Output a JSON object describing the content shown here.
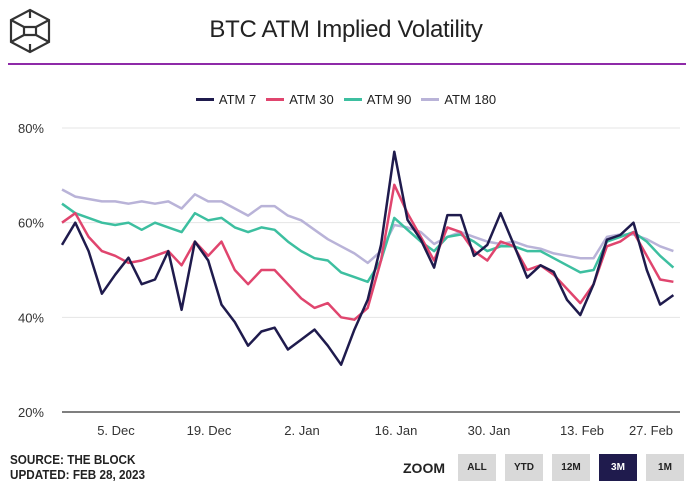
{
  "header": {
    "title": "BTC ATM Implied Volatility",
    "logo": "The Block cube logo"
  },
  "footer": {
    "source": "SOURCE: THE BLOCK",
    "updated": "UPDATED: FEB 28, 2023"
  },
  "zoom": {
    "label": "ZOOM",
    "buttons": [
      "ALL",
      "YTD",
      "12M",
      "3M",
      "1M"
    ],
    "active": "3M"
  },
  "chart_data": {
    "type": "line",
    "title": "BTC ATM Implied Volatility",
    "ylim": [
      20,
      80
    ],
    "yticks": [
      "20%",
      "40%",
      "60%",
      "80%"
    ],
    "xticks": [
      "5. Dec",
      "19. Dec",
      "2. Jan",
      "16. Jan",
      "30. Jan",
      "13. Feb",
      "27. Feb"
    ],
    "xrange": [
      "2022-11-27",
      "2023-02-28"
    ],
    "grid": true,
    "legend": "top",
    "x": [
      "2022-11-27",
      "2022-11-29",
      "2022-12-01",
      "2022-12-03",
      "2022-12-05",
      "2022-12-07",
      "2022-12-09",
      "2022-12-11",
      "2022-12-13",
      "2022-12-15",
      "2022-12-17",
      "2022-12-19",
      "2022-12-21",
      "2022-12-23",
      "2022-12-25",
      "2022-12-27",
      "2022-12-29",
      "2022-12-31",
      "2023-01-02",
      "2023-01-04",
      "2023-01-06",
      "2023-01-08",
      "2023-01-10",
      "2023-01-12",
      "2023-01-14",
      "2023-01-16",
      "2023-01-18",
      "2023-01-20",
      "2023-01-22",
      "2023-01-24",
      "2023-01-26",
      "2023-01-28",
      "2023-01-30",
      "2023-02-01",
      "2023-02-03",
      "2023-02-05",
      "2023-02-07",
      "2023-02-09",
      "2023-02-11",
      "2023-02-13",
      "2023-02-15",
      "2023-02-17",
      "2023-02-19",
      "2023-02-21",
      "2023-02-23",
      "2023-02-25",
      "2023-02-27"
    ],
    "series": [
      {
        "name": "ATM 7",
        "color": "#1f1b4d",
        "values": [
          55.3,
          60,
          54,
          45,
          49,
          52.6,
          47,
          48,
          54,
          41.6,
          56,
          52,
          42.7,
          39,
          34,
          37,
          37.8,
          33.2,
          35.3,
          37.4,
          34,
          30,
          37.4,
          43.7,
          55.3,
          75,
          60.6,
          56.4,
          50.5,
          61.6,
          61.6,
          53,
          55.3,
          62,
          55.3,
          48.4,
          51,
          49.6,
          43.7,
          40.5,
          47,
          56.4,
          57.4,
          60,
          50,
          42.7,
          44.7
        ]
      },
      {
        "name": "ATM 30",
        "color": "#e0456e",
        "values": [
          60,
          62,
          57,
          54,
          53,
          51.5,
          52,
          53,
          54,
          51,
          56,
          53,
          56,
          50,
          47,
          50,
          50,
          47,
          44,
          42,
          43,
          40,
          39.5,
          42,
          52,
          68,
          62,
          57,
          52,
          59,
          58,
          54,
          52,
          56,
          55,
          50,
          51,
          49,
          46,
          43,
          47,
          55,
          56,
          58,
          53,
          48,
          47.5
        ]
      },
      {
        "name": "ATM 90",
        "color": "#3dbfa0",
        "values": [
          64,
          62,
          61,
          60,
          59.5,
          60,
          58.5,
          60,
          59,
          58,
          62,
          60.5,
          61,
          59,
          58,
          59,
          58.5,
          56,
          54,
          52.5,
          52,
          49.5,
          48.5,
          47.5,
          52,
          61,
          58.5,
          56,
          54,
          57,
          57.5,
          56,
          54,
          55,
          55,
          54,
          54,
          52.5,
          51,
          49.5,
          50,
          56,
          57,
          58,
          56,
          53,
          50.5
        ]
      },
      {
        "name": "ATM 180",
        "color": "#b9b3d8",
        "values": [
          67,
          65.5,
          65,
          64.5,
          64.5,
          64,
          64.5,
          64,
          64.5,
          63,
          66,
          64.5,
          64.5,
          63,
          61.5,
          63.5,
          63.5,
          61.5,
          60.5,
          58.5,
          56.5,
          55,
          53.5,
          51.5,
          54,
          59.5,
          59,
          58,
          55.5,
          57,
          58,
          57,
          56,
          55.5,
          56,
          55,
          54.5,
          53.5,
          53,
          52.5,
          52.5,
          57,
          57.5,
          57.5,
          56.5,
          55,
          54
        ]
      }
    ]
  }
}
